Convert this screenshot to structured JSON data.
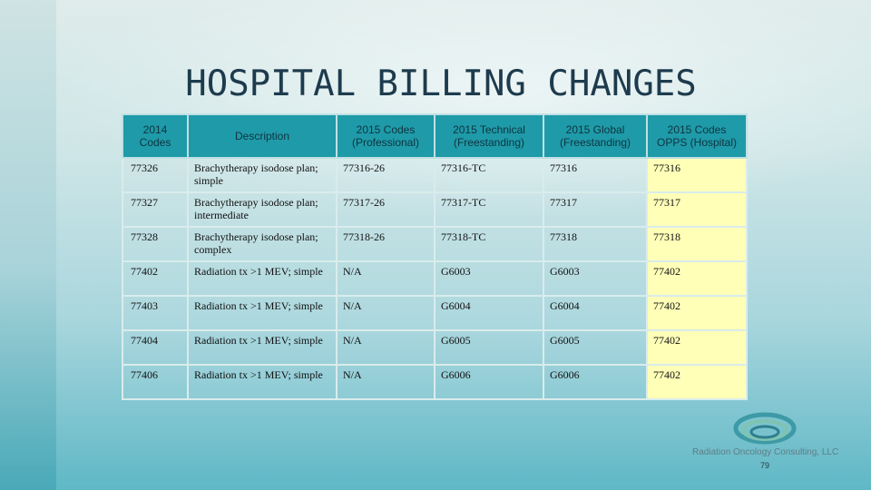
{
  "slide": {
    "title": "HOSPITAL BILLING CHANGES",
    "logo_text": "Radiation Oncology Consulting, LLC",
    "page_number": "79",
    "highlight_color": "#ffffb8",
    "header_color": "#1f9aa8"
  },
  "table": {
    "headers": [
      "2014 Codes",
      "Description",
      "2015 Codes (Professional)",
      "2015 Technical (Freestanding)",
      "2015 Global (Freestanding)",
      "2015 Codes OPPS (Hospital)"
    ],
    "rows": [
      [
        "77326",
        "Brachytherapy isodose plan; simple",
        "77316-26",
        "77316-TC",
        "77316",
        "77316"
      ],
      [
        "77327",
        "Brachytherapy isodose plan; intermediate",
        "77317-26",
        "77317-TC",
        "77317",
        "77317"
      ],
      [
        "77328",
        "Brachytherapy isodose plan; complex",
        "77318-26",
        "77318-TC",
        "77318",
        "77318"
      ],
      [
        "77402",
        "Radiation tx >1 MEV; simple",
        "N/A",
        "G6003",
        "G6003",
        "77402"
      ],
      [
        "77403",
        "Radiation tx >1 MEV; simple",
        "N/A",
        "G6004",
        "G6004",
        "77402"
      ],
      [
        "77404",
        "Radiation tx >1 MEV; simple",
        "N/A",
        "G6005",
        "G6005",
        "77402"
      ],
      [
        "77406",
        "Radiation tx >1 MEV; simple",
        "N/A",
        "G6006",
        "G6006",
        "77402"
      ]
    ]
  }
}
